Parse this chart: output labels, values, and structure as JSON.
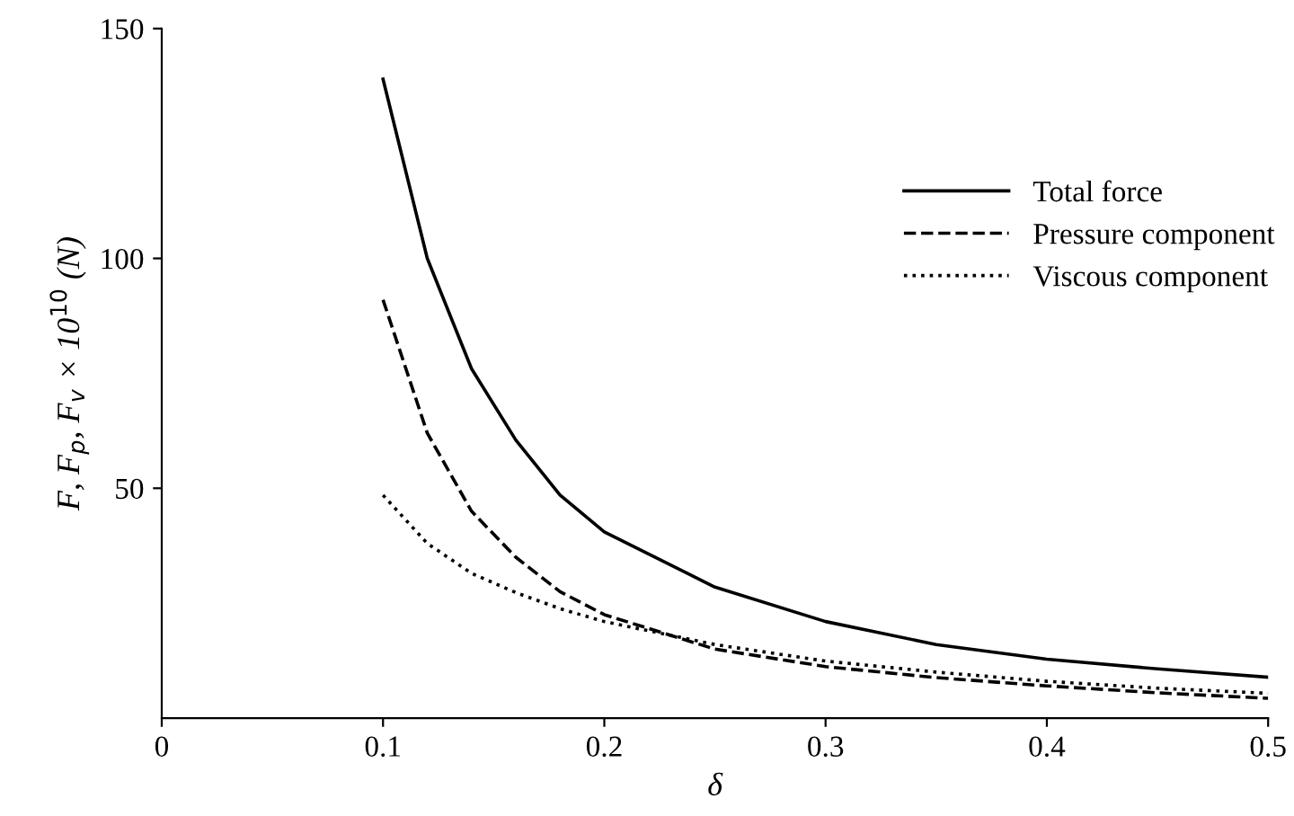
{
  "chart_data": {
    "type": "line",
    "xlabel": "δ",
    "ylabel": "F, F$_{p}$, F$_{v}$ × 10$^{10}$ (N)",
    "x": [
      0.1,
      0.12,
      0.14,
      0.16,
      0.18,
      0.2,
      0.25,
      0.3,
      0.35,
      0.4,
      0.45,
      0.5
    ],
    "series": [
      {
        "name": "Total force",
        "color": "#000000",
        "line_style": "solid",
        "values": [
          139,
          100,
          76,
          60.5,
          48.5,
          40.5,
          28.5,
          21,
          16,
          12.8,
          10.7,
          8.9
        ]
      },
      {
        "name": "Pressure component",
        "color": "#000000",
        "line_style": "dashed",
        "values": [
          91,
          62,
          45,
          35,
          27.5,
          22.5,
          15,
          11.2,
          8.8,
          7,
          5.5,
          4.3
        ]
      },
      {
        "name": "Viscous component",
        "color": "#000000",
        "line_style": "dotted",
        "values": [
          48.5,
          38,
          31.5,
          27.3,
          23.8,
          21,
          16,
          12.4,
          10,
          8,
          6.5,
          5.4
        ]
      }
    ],
    "xlim": [
      0,
      0.5
    ],
    "xticks": [
      0,
      0.1,
      0.2,
      0.3,
      0.4,
      0.5
    ],
    "ylim": [
      0,
      150
    ],
    "yticks": [
      50,
      100,
      150
    ],
    "grid": false,
    "legend": "top right",
    "marker": "none"
  }
}
